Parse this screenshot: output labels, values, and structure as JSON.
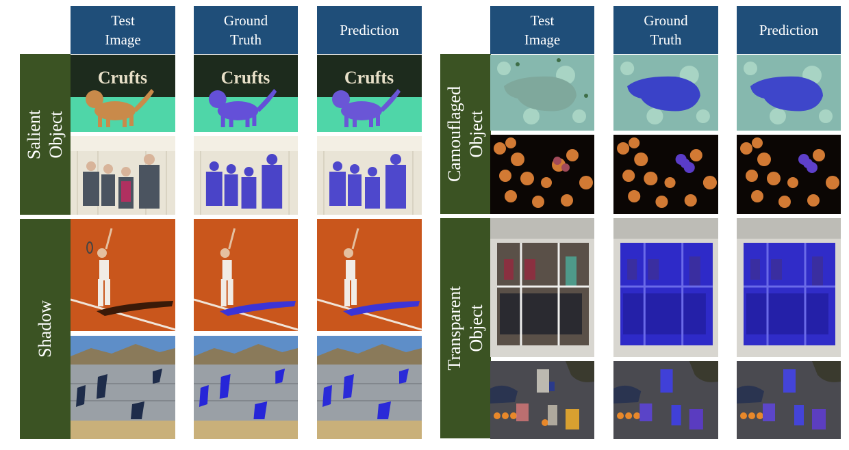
{
  "left_panel": {
    "headers": [
      "Test\nImage",
      "Ground\nTruth",
      "Prediction"
    ],
    "groups": [
      {
        "label": "Salient\nObject"
      },
      {
        "label": "Shadow"
      }
    ]
  },
  "right_panel": {
    "headers": [
      "Test\nImage",
      "Ground\nTruth",
      "Prediction"
    ],
    "groups": [
      {
        "label": "Camouflaged\nObject"
      },
      {
        "label": "Transparent\nObject"
      }
    ]
  },
  "scene_text": {
    "crufts_sign": "Crufts"
  },
  "colors": {
    "header_bg": "#1f4e79",
    "group_bg": "#3b5323",
    "mask_overlay": "#3333ff"
  }
}
